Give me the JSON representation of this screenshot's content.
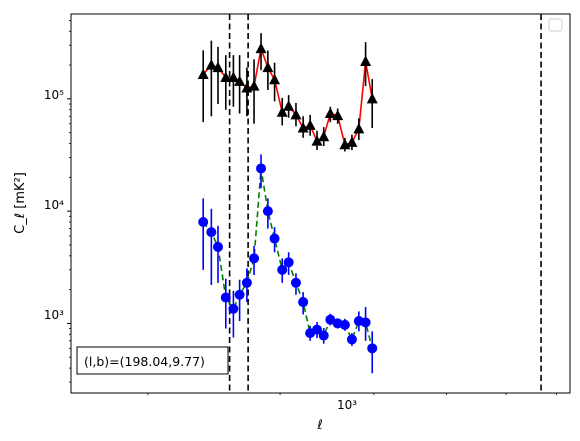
{
  "chart_data": {
    "type": "scatter",
    "title": "",
    "xlabel": "ℓ",
    "ylabel": "C_ℓ [mK²]",
    "xscale": "log",
    "yscale": "log",
    "xlim": [
      158,
      730
    ],
    "ylim": [
      240,
      570000
    ],
    "x_tick_label": "10³",
    "y_tick_labels": [
      "10³",
      "10⁴",
      "10⁵"
    ],
    "annotation": "(l,b)=(198.04,9.77)",
    "legend": "top-right (empty)",
    "vlines": [
      257,
      272,
      668
    ],
    "series": [
      {
        "color": "#ff0000",
        "marker": "triangle",
        "line_style": "solid",
        "points": [
          {
            "x": 237,
            "y": 165000,
            "lo": 62000,
            "hi": 270000
          },
          {
            "x": 243,
            "y": 200000,
            "lo": 70000,
            "hi": 330000
          },
          {
            "x": 248,
            "y": 190000,
            "lo": 90000,
            "hi": 290000
          },
          {
            "x": 254,
            "y": 155000,
            "lo": 80000,
            "hi": 245000
          },
          {
            "x": 260,
            "y": 155000,
            "lo": 85000,
            "hi": 245000
          },
          {
            "x": 265,
            "y": 143000,
            "lo": 74000,
            "hi": 245000
          },
          {
            "x": 271,
            "y": 125000,
            "lo": 70000,
            "hi": 190000
          },
          {
            "x": 277,
            "y": 130000,
            "lo": 60000,
            "hi": 225000
          },
          {
            "x": 283,
            "y": 280000,
            "lo": 180000,
            "hi": 385000
          },
          {
            "x": 289,
            "y": 190000,
            "lo": 120000,
            "hi": 270000
          },
          {
            "x": 295,
            "y": 148000,
            "lo": 95000,
            "hi": 210000
          },
          {
            "x": 302,
            "y": 76000,
            "lo": 58000,
            "hi": 102000
          },
          {
            "x": 308,
            "y": 86000,
            "lo": 68000,
            "hi": 108000
          },
          {
            "x": 315,
            "y": 72000,
            "lo": 57000,
            "hi": 92000
          },
          {
            "x": 322,
            "y": 55000,
            "lo": 45000,
            "hi": 70000
          },
          {
            "x": 329,
            "y": 58000,
            "lo": 47000,
            "hi": 72000
          },
          {
            "x": 336,
            "y": 42000,
            "lo": 35000,
            "hi": 52000
          },
          {
            "x": 343,
            "y": 46000,
            "lo": 38000,
            "hi": 56000
          },
          {
            "x": 350,
            "y": 74000,
            "lo": 62000,
            "hi": 85000
          },
          {
            "x": 358,
            "y": 71000,
            "lo": 60000,
            "hi": 82000
          },
          {
            "x": 366,
            "y": 39000,
            "lo": 34000,
            "hi": 45000
          },
          {
            "x": 374,
            "y": 41000,
            "lo": 35000,
            "hi": 48000
          },
          {
            "x": 382,
            "y": 54000,
            "lo": 43000,
            "hi": 67000
          },
          {
            "x": 390,
            "y": 215000,
            "lo": 130000,
            "hi": 320000
          },
          {
            "x": 398,
            "y": 100000,
            "lo": 55000,
            "hi": 150000
          }
        ]
      },
      {
        "color": "#008000",
        "marker": "circle",
        "marker_color": "#0000ff",
        "error_color": "#0000ff",
        "line_style": "dashed",
        "points": [
          {
            "x": 237,
            "y": 8000,
            "lo": 3000,
            "hi": 13000
          },
          {
            "x": 243,
            "y": 6500,
            "lo": 2200,
            "hi": 10500
          },
          {
            "x": 248,
            "y": 4800,
            "lo": 2300,
            "hi": 7400
          },
          {
            "x": 254,
            "y": 1700,
            "lo": 900,
            "hi": 2500
          },
          {
            "x": 260,
            "y": 1350,
            "lo": 750,
            "hi": 1950
          },
          {
            "x": 265,
            "y": 1800,
            "lo": 1050,
            "hi": 2450
          },
          {
            "x": 271,
            "y": 2300,
            "lo": 1550,
            "hi": 3100
          },
          {
            "x": 277,
            "y": 3800,
            "lo": 2700,
            "hi": 4900
          },
          {
            "x": 283,
            "y": 24000,
            "lo": 16000,
            "hi": 32000
          },
          {
            "x": 289,
            "y": 10000,
            "lo": 7000,
            "hi": 13000
          },
          {
            "x": 295,
            "y": 5700,
            "lo": 4300,
            "hi": 7200
          },
          {
            "x": 302,
            "y": 3000,
            "lo": 2300,
            "hi": 3800
          },
          {
            "x": 308,
            "y": 3500,
            "lo": 2700,
            "hi": 4300
          },
          {
            "x": 315,
            "y": 2300,
            "lo": 1800,
            "hi": 2800
          },
          {
            "x": 322,
            "y": 1550,
            "lo": 1200,
            "hi": 1900
          },
          {
            "x": 329,
            "y": 820,
            "lo": 700,
            "hi": 950
          },
          {
            "x": 336,
            "y": 880,
            "lo": 740,
            "hi": 1030
          },
          {
            "x": 343,
            "y": 780,
            "lo": 660,
            "hi": 910
          },
          {
            "x": 350,
            "y": 1080,
            "lo": 960,
            "hi": 1220
          },
          {
            "x": 358,
            "y": 1000,
            "lo": 900,
            "hi": 1110
          },
          {
            "x": 366,
            "y": 970,
            "lo": 860,
            "hi": 1100
          },
          {
            "x": 374,
            "y": 720,
            "lo": 630,
            "hi": 820
          },
          {
            "x": 382,
            "y": 1050,
            "lo": 850,
            "hi": 1280
          },
          {
            "x": 390,
            "y": 1020,
            "lo": 700,
            "hi": 1400
          },
          {
            "x": 398,
            "y": 600,
            "lo": 360,
            "hi": 850
          }
        ]
      }
    ]
  }
}
